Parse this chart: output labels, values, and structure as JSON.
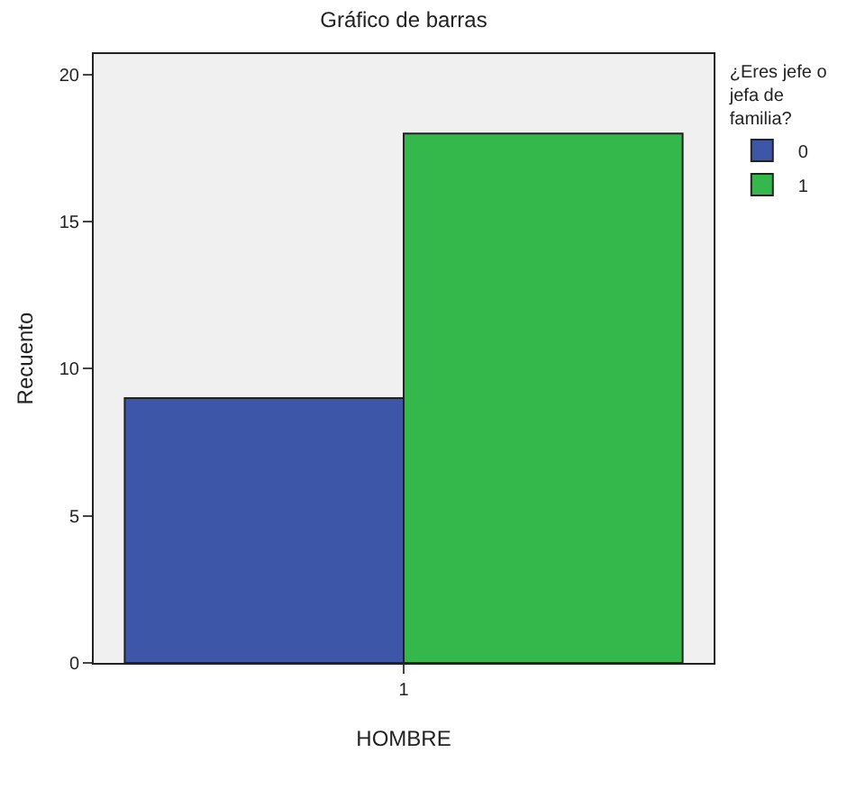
{
  "chart_data": {
    "type": "bar",
    "title": "Gráfico de barras",
    "xlabel": "HOMBRE",
    "ylabel": "Recuento",
    "legend_title": "¿Eres jefe o jefa de familia?",
    "categories": [
      "1"
    ],
    "series": [
      {
        "name": "0",
        "color": "#3e56a8",
        "values": [
          9
        ]
      },
      {
        "name": "1",
        "color": "#35b84b",
        "values": [
          18
        ]
      }
    ],
    "ylim": [
      0,
      20.7
    ],
    "yticks": [
      0,
      5,
      10,
      15,
      20
    ],
    "grid": false,
    "legend": "right"
  }
}
